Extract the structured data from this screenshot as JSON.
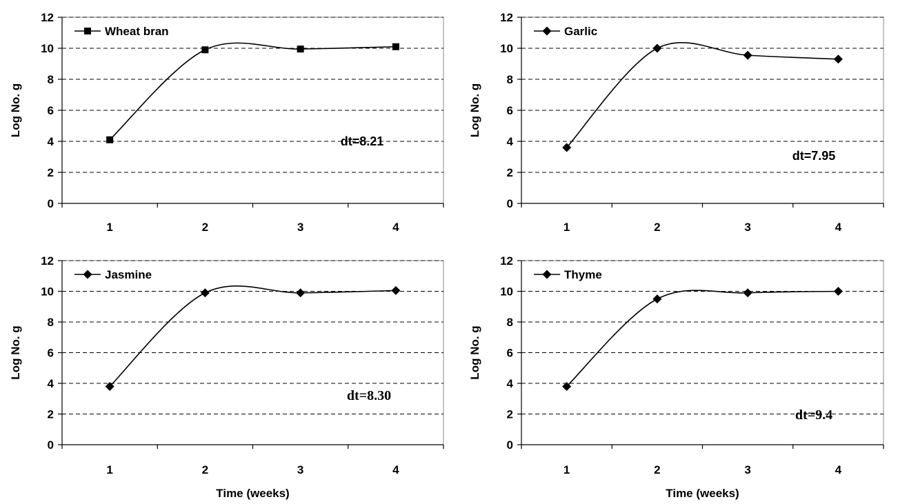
{
  "chart_data": [
    {
      "type": "line",
      "series_name": "Wheat bran",
      "marker": "square",
      "categories": [
        "1",
        "2",
        "3",
        "4"
      ],
      "x": [
        1,
        2,
        3,
        4
      ],
      "values": [
        4.1,
        9.9,
        9.95,
        10.1
      ],
      "yticks": [
        "0",
        "2",
        "4",
        "6",
        "8",
        "10",
        "12"
      ],
      "ylim": [
        0,
        12
      ],
      "ylabel": "Log No. g",
      "xlabel": "",
      "annotation": "dt=8.21",
      "grid": "horizontal dashed",
      "legend_position": "top-left"
    },
    {
      "type": "line",
      "series_name": "Garlic",
      "marker": "diamond",
      "categories": [
        "1",
        "2",
        "3",
        "4"
      ],
      "x": [
        1,
        2,
        3,
        4
      ],
      "values": [
        3.6,
        10.0,
        9.55,
        9.3
      ],
      "yticks": [
        "0",
        "2",
        "4",
        "6",
        "8",
        "10",
        "12"
      ],
      "ylim": [
        0,
        12
      ],
      "ylabel": "Log No. g",
      "xlabel": "",
      "annotation": "dt=7.95",
      "grid": "horizontal dashed",
      "legend_position": "top-left"
    },
    {
      "type": "line",
      "series_name": "Jasmine",
      "marker": "diamond",
      "categories": [
        "1",
        "2",
        "3",
        "4"
      ],
      "x": [
        1,
        2,
        3,
        4
      ],
      "values": [
        3.8,
        9.9,
        9.9,
        10.05
      ],
      "yticks": [
        "0",
        "2",
        "4",
        "6",
        "8",
        "10",
        "12"
      ],
      "ylim": [
        0,
        12
      ],
      "ylabel": "Log No. g",
      "xlabel": "Time (weeks)",
      "annotation": "dt=8.30",
      "grid": "horizontal dashed",
      "legend_position": "top-left"
    },
    {
      "type": "line",
      "series_name": "Thyme",
      "marker": "diamond",
      "categories": [
        "1",
        "2",
        "3",
        "4"
      ],
      "x": [
        1,
        2,
        3,
        4
      ],
      "values": [
        3.8,
        9.5,
        9.9,
        10.0
      ],
      "yticks": [
        "0",
        "2",
        "4",
        "6",
        "8",
        "10",
        "12"
      ],
      "ylim": [
        0,
        12
      ],
      "ylabel": "Log No. g",
      "xlabel": "Time (weeks)",
      "annotation": "dt=9.4",
      "grid": "horizontal dashed",
      "legend_position": "top-left"
    }
  ]
}
